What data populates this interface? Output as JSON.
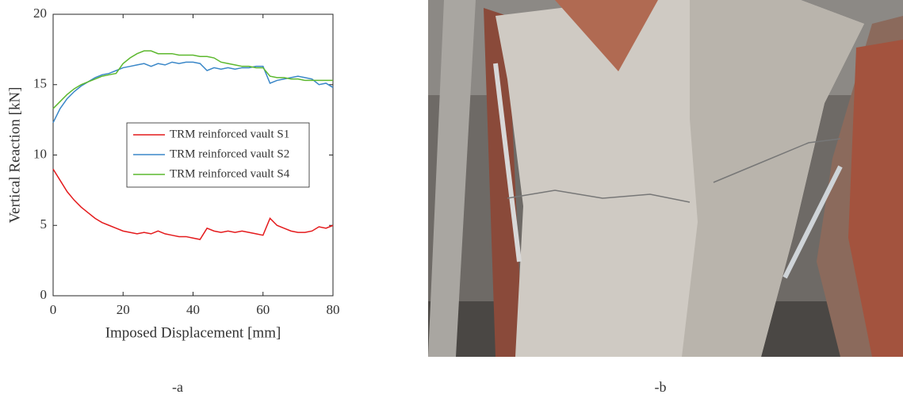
{
  "chart_data": {
    "type": "line",
    "xlabel": "Imposed Displacement [mm]",
    "ylabel": "Vertical Reaction [kN]",
    "x": [
      0,
      2,
      4,
      6,
      8,
      10,
      12,
      14,
      16,
      18,
      20,
      22,
      24,
      26,
      28,
      30,
      32,
      34,
      36,
      38,
      40,
      42,
      44,
      46,
      48,
      50,
      52,
      54,
      56,
      58,
      60,
      62,
      64,
      66,
      68,
      70,
      72,
      74,
      76,
      78,
      80
    ],
    "series": [
      {
        "name": "TRM reinforced vault S1",
        "color": "#e41a1c",
        "values": [
          9.0,
          8.2,
          7.4,
          6.8,
          6.3,
          5.9,
          5.5,
          5.2,
          5.0,
          4.8,
          4.6,
          4.5,
          4.4,
          4.5,
          4.4,
          4.6,
          4.4,
          4.3,
          4.2,
          4.2,
          4.1,
          4.0,
          4.8,
          4.6,
          4.5,
          4.6,
          4.5,
          4.6,
          4.5,
          4.4,
          4.3,
          5.5,
          5.0,
          4.8,
          4.6,
          4.5,
          4.5,
          4.6,
          4.9,
          4.8,
          5.0
        ]
      },
      {
        "name": "TRM reinforced vault S2",
        "color": "#3a87c8",
        "values": [
          12.3,
          13.3,
          14.0,
          14.5,
          14.9,
          15.2,
          15.5,
          15.7,
          15.8,
          16.0,
          16.2,
          16.3,
          16.4,
          16.5,
          16.3,
          16.5,
          16.4,
          16.6,
          16.5,
          16.6,
          16.6,
          16.5,
          16.0,
          16.2,
          16.1,
          16.2,
          16.1,
          16.2,
          16.2,
          16.3,
          16.3,
          15.1,
          15.3,
          15.4,
          15.5,
          15.6,
          15.5,
          15.4,
          15.0,
          15.1,
          14.8
        ]
      },
      {
        "name": "TRM reinforced vault S4",
        "color": "#5cb82e",
        "values": [
          13.3,
          13.8,
          14.3,
          14.7,
          15.0,
          15.2,
          15.4,
          15.6,
          15.7,
          15.8,
          16.5,
          16.9,
          17.2,
          17.4,
          17.4,
          17.2,
          17.2,
          17.2,
          17.1,
          17.1,
          17.1,
          17.0,
          17.0,
          16.9,
          16.6,
          16.5,
          16.4,
          16.3,
          16.3,
          16.2,
          16.2,
          15.6,
          15.5,
          15.5,
          15.4,
          15.4,
          15.3,
          15.3,
          15.3,
          15.3,
          15.3
        ]
      }
    ],
    "xlim": [
      0,
      80
    ],
    "xticks": [
      0,
      20,
      40,
      60,
      80
    ],
    "ylim": [
      0,
      20
    ],
    "yticks": [
      0,
      5,
      10,
      15,
      20
    ],
    "grid": false
  },
  "captions": [
    "-a",
    "-b"
  ]
}
